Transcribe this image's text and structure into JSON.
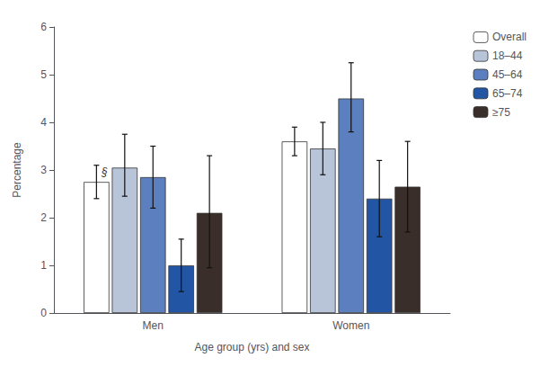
{
  "chart_data": {
    "type": "bar",
    "categories": [
      "Men",
      "Women"
    ],
    "series": [
      {
        "name": "Overall",
        "color": "#ffffff",
        "values": [
          2.75,
          3.6
        ],
        "errors_low": [
          0.35,
          0.3
        ],
        "errors_high": [
          0.35,
          0.3
        ]
      },
      {
        "name": "18–44",
        "color": "#b8c4d8",
        "values": [
          3.05,
          3.45
        ],
        "errors_low": [
          0.6,
          0.55
        ],
        "errors_high": [
          0.7,
          0.55
        ]
      },
      {
        "name": "45–64",
        "color": "#5b7fbf",
        "values": [
          2.85,
          4.5
        ],
        "errors_low": [
          0.65,
          0.7
        ],
        "errors_high": [
          0.65,
          0.75
        ]
      },
      {
        "name": "65–74",
        "color": "#2255a4",
        "values": [
          1.0,
          2.4
        ],
        "errors_low": [
          0.55,
          0.8
        ],
        "errors_high": [
          0.55,
          0.8
        ]
      },
      {
        "name": "≥75",
        "color": "#3a2e2a",
        "values": [
          2.1,
          2.65
        ],
        "errors_low": [
          1.15,
          0.95
        ],
        "errors_high": [
          1.2,
          0.95
        ]
      }
    ],
    "xlabel": "Age group (yrs) and sex",
    "ylabel": "Percentage",
    "ylim": [
      0,
      6
    ],
    "yticks": [
      0,
      1,
      2,
      3,
      4,
      5,
      6
    ],
    "grid": false,
    "legend": "upper right",
    "annotations": [
      {
        "text": "§",
        "series": "Overall",
        "category": "Men"
      }
    ]
  }
}
